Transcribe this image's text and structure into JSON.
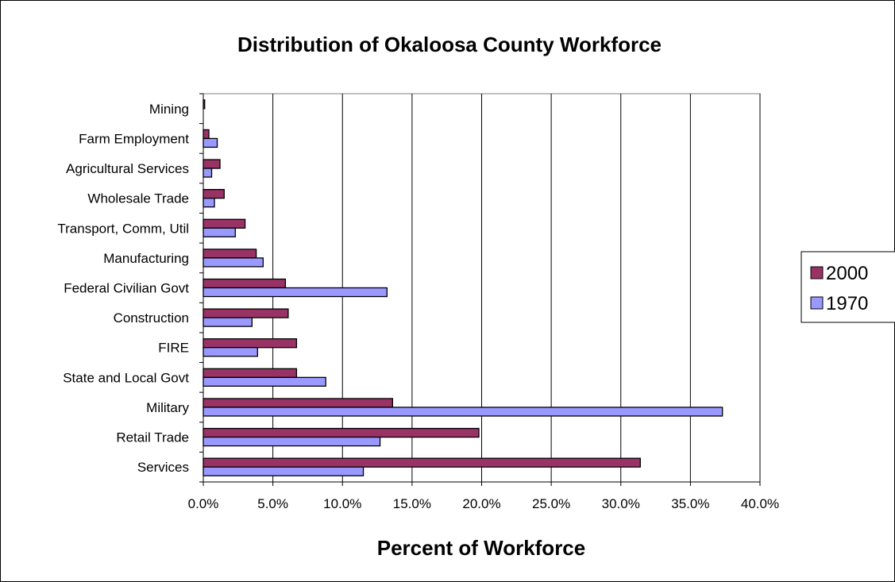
{
  "chart_data": {
    "type": "bar",
    "orientation": "horizontal",
    "title": "Distribution of Okaloosa County Workforce",
    "xlabel": "Percent of Workforce",
    "ylabel": "",
    "xlim": [
      0,
      40
    ],
    "x_ticks": [
      "0.0%",
      "5.0%",
      "10.0%",
      "15.0%",
      "20.0%",
      "25.0%",
      "30.0%",
      "35.0%",
      "40.0%"
    ],
    "grid": "vertical",
    "legend_position": "right",
    "categories": [
      "Mining",
      "Farm Employment",
      "Agricultural Services",
      "Wholesale Trade",
      "Transport, Comm, Util",
      "Manufacturing",
      "Federal Civilian Govt",
      "Construction",
      "FIRE",
      "State and Local Govt",
      "Military",
      "Retail Trade",
      "Services"
    ],
    "series": [
      {
        "name": "2000",
        "color": "#993366",
        "values": [
          0.1,
          0.4,
          1.2,
          1.5,
          3.0,
          3.8,
          5.9,
          6.1,
          6.7,
          6.7,
          13.6,
          19.8,
          31.4
        ]
      },
      {
        "name": "1970",
        "color": "#9999ff",
        "values": [
          0.0,
          1.0,
          0.6,
          0.8,
          2.3,
          4.3,
          13.2,
          3.5,
          3.9,
          8.8,
          37.3,
          12.7,
          11.5
        ]
      }
    ]
  }
}
